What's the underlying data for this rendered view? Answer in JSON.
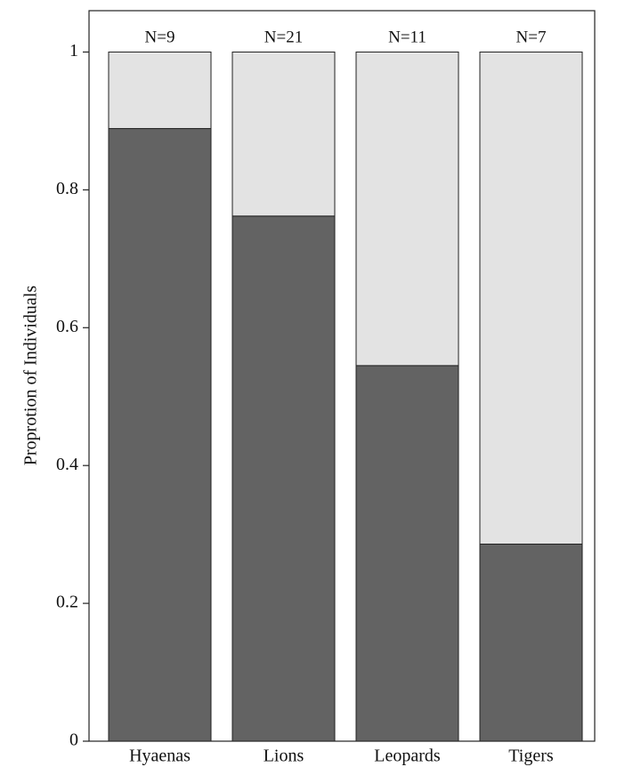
{
  "chart_data": {
    "type": "stacked-bar",
    "categories": [
      "Hyaenas",
      "Lions",
      "Leopards",
      "Tigers"
    ],
    "y_label": "Proprotion of Individuals",
    "annotations": [
      "N=9",
      "N=21",
      "N=11",
      "N=7"
    ],
    "series": [
      {
        "color": "#636363",
        "values": [
          0.889,
          0.762,
          0.545,
          0.286
        ]
      },
      {
        "color": "#e3e3e3",
        "values": [
          0.111,
          0.238,
          0.455,
          0.714
        ]
      }
    ],
    "ylim": [
      0,
      1.06
    ],
    "yticks": [
      0,
      0.2,
      0.4,
      0.6,
      0.8,
      1
    ]
  }
}
